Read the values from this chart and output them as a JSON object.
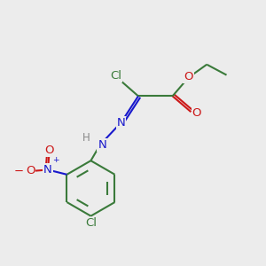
{
  "background_color": "#ececec",
  "bond_color": "#3a7a3a",
  "bond_width": 1.5,
  "N_color": "#1818cc",
  "O_color": "#cc1818",
  "Cl_color": "#3a7a3a",
  "H_color": "#888888",
  "font_size": 8.5,
  "fig_size": [
    3.0,
    3.0
  ],
  "dpi": 100,
  "xlim": [
    0,
    10
  ],
  "ylim": [
    0,
    10
  ]
}
